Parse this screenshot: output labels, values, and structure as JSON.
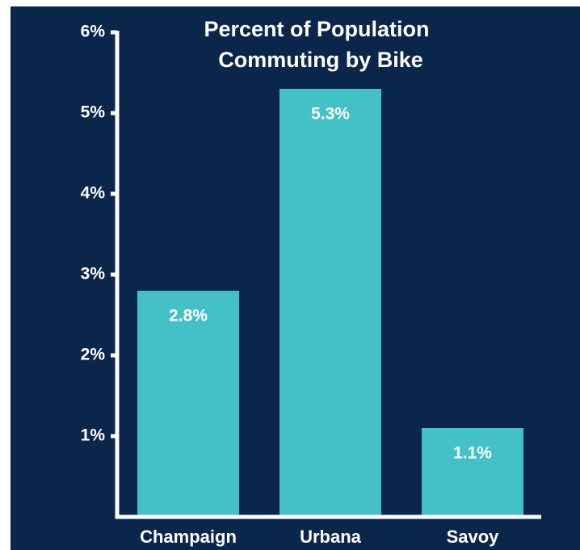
{
  "chart_data": {
    "type": "bar",
    "title": [
      "Percent of Population",
      "Commuting by Bike"
    ],
    "categories": [
      "Champaign",
      "Urbana",
      "Savoy"
    ],
    "values": [
      2.8,
      5.3,
      1.1
    ],
    "value_labels": [
      "2.8%",
      "5.3%",
      "1.1%"
    ],
    "color": "#43c1c6",
    "ylim": [
      0,
      6
    ],
    "yticks": [
      {
        "value": 1,
        "label": "1%"
      },
      {
        "value": 2,
        "label": "2%"
      },
      {
        "value": 3,
        "label": "3%"
      },
      {
        "value": 4,
        "label": "4%"
      },
      {
        "value": 5,
        "label": "5%"
      },
      {
        "value": 6,
        "label": "6%"
      }
    ],
    "grid": false
  }
}
